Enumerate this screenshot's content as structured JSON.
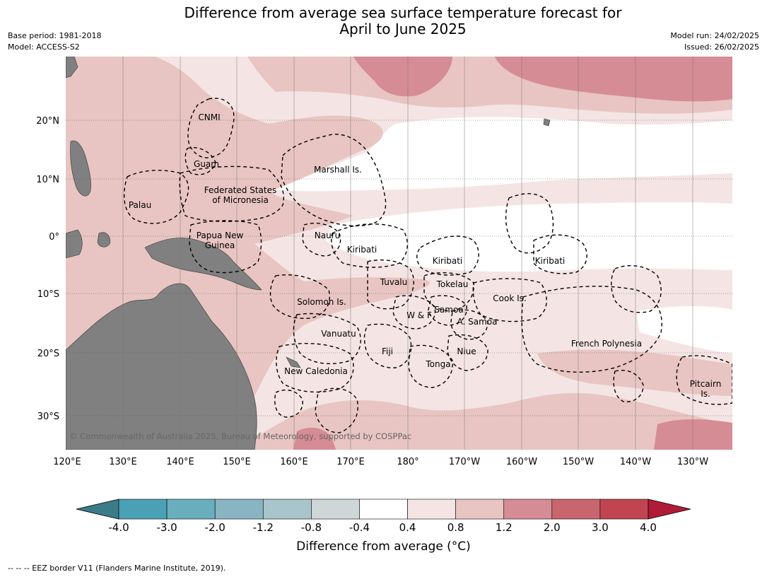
{
  "title_line1": "Difference from average sea surface temperature forecast for",
  "title_line2": "April to June 2025",
  "meta_left": [
    "Base period: 1981-2018",
    "Model: ACCESS-S2"
  ],
  "meta_right": [
    "Model run: 24/02/2025",
    "Issued: 26/02/2025"
  ],
  "lon_ticks": [
    "120°E",
    "130°E",
    "140°E",
    "150°E",
    "160°E",
    "170°E",
    "180°",
    "170°W",
    "160°W",
    "150°W",
    "140°W",
    "130°W"
  ],
  "lat_ticks": [
    "20°N",
    "10°N",
    "0°",
    "10°S",
    "20°S",
    "30°S"
  ],
  "eez_labels": [
    "CNMI",
    "Guam",
    "Marshall Is.",
    "Federated States",
    "of Micronesia",
    "Palau",
    "Nauru",
    "Papua New",
    "Guinea",
    "Kiribati",
    "Kiribati",
    "Kiribati",
    "Tuvalu",
    "Tokelau",
    "Cook Is.",
    "Solomon Is.",
    "Samoa",
    "W & F",
    "A. Samoa",
    "Vanuatu",
    "Fiji",
    "Niue",
    "French Polynesia",
    "Tonga",
    "New Caledonia",
    "Pitcairn",
    "Is."
  ],
  "copyright": "© Commonwealth of Australia 2025, Bureau of Meteorology, supported by COSPPac",
  "colorbar": {
    "ticks": [
      "-4.0",
      "-3.0",
      "-2.0",
      "-1.2",
      "-0.8",
      "-0.4",
      "0.4",
      "0.8",
      "1.2",
      "2.0",
      "3.0",
      "4.0"
    ],
    "colors": [
      "#3a7d89",
      "#4aa0b5",
      "#6aaebd",
      "#89b5c2",
      "#a8c5cb",
      "#ced6d8",
      "#ffffff",
      "#f4e5e4",
      "#e8c5c2",
      "#d68c94",
      "#c9656f",
      "#c04551",
      "#b01c38"
    ],
    "title": "Difference from average (°C)"
  },
  "footer": "--  --  -- EEZ border V11 (Flanders Marine Institute, 2019)."
}
